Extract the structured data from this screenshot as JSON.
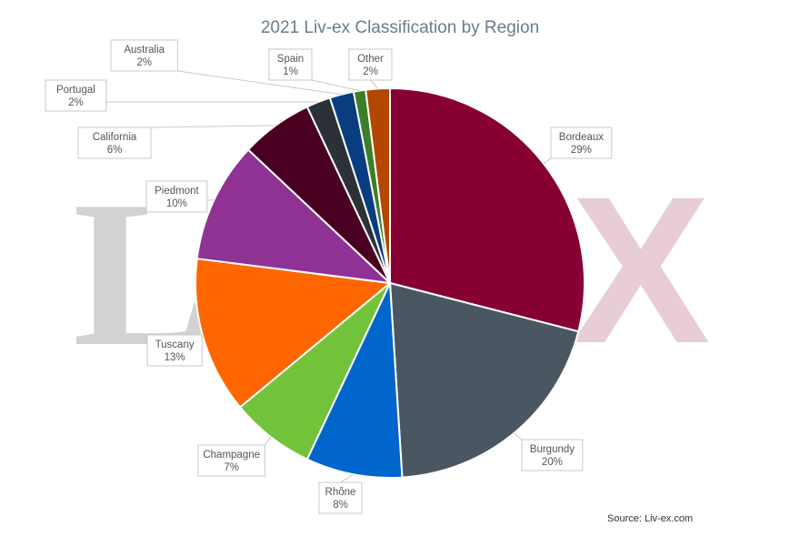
{
  "title": "2021 Liv-ex Classification by Region",
  "source": "Source: Liv-ex.com",
  "watermark": {
    "left_text": "Liv",
    "right_text": "X",
    "left_color": "#d2d2d2",
    "right_color": "#e8cdd6"
  },
  "chart_data": {
    "type": "pie",
    "title": "2021 Liv-ex Classification by Region",
    "slices": [
      {
        "label": "Bordeaux",
        "pct_label": "29%",
        "value": 29,
        "color": "#860033"
      },
      {
        "label": "Burgundy",
        "pct_label": "20%",
        "value": 20,
        "color": "#4a5763"
      },
      {
        "label": "Rhône",
        "pct_label": "8%",
        "value": 8,
        "color": "#0066cc"
      },
      {
        "label": "Champagne",
        "pct_label": "7%",
        "value": 7,
        "color": "#72c339"
      },
      {
        "label": "Tuscany",
        "pct_label": "13%",
        "value": 13,
        "color": "#ff6600"
      },
      {
        "label": "Piedmont",
        "pct_label": "10%",
        "value": 10,
        "color": "#8f3294"
      },
      {
        "label": "California",
        "pct_label": "6%",
        "value": 6,
        "color": "#4a0020"
      },
      {
        "label": "Portugal",
        "pct_label": "2%",
        "value": 2,
        "color": "#2c3138"
      },
      {
        "label": "Australia",
        "pct_label": "2%",
        "value": 2,
        "color": "#0a3d80"
      },
      {
        "label": "Spain",
        "pct_label": "1%",
        "value": 1,
        "color": "#3b7f28"
      },
      {
        "label": "Other",
        "pct_label": "2%",
        "value": 2,
        "color": "#b34700"
      }
    ]
  }
}
